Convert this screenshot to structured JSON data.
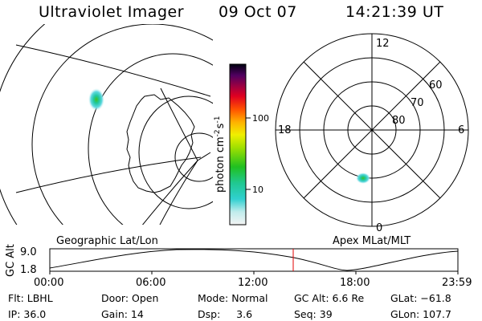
{
  "header": {
    "title": "Ultraviolet Imager",
    "date": "09 Oct 07",
    "time": "14:21:39 UT"
  },
  "colorbar": {
    "ticks": [
      "100",
      "10"
    ],
    "label_main": "photon cm",
    "label_exp1": "-2",
    "label_mid": "s",
    "label_exp2": "-1"
  },
  "polar": {
    "mlt_labels": {
      "top": "12",
      "left": "18",
      "right": "6",
      "bottom": "0"
    },
    "lat_labels": [
      "60",
      "70",
      "80"
    ]
  },
  "timeline": {
    "left_label": "Geographic Lat/Lon",
    "right_label": "Apex MLat/MLT",
    "axis_title": "GC Alt",
    "y_top": "9.0",
    "y_bottom": "1.8",
    "x_ticks": [
      "00:00",
      "06:00",
      "12:00",
      "18:00",
      "23:59"
    ],
    "cursor_color": "#e00000"
  },
  "footer": {
    "flt": "Flt: LBHL",
    "ip": "IP: 36.0",
    "door": "Door: Open",
    "gain": "Gain: 14",
    "mode": "Mode: Normal",
    "dsp": "Dsp:     3.6",
    "gcalt": "GC Alt: 6.6 Re",
    "seq": "Seq: 39",
    "glat": "GLat: −61.8",
    "glon": "GLon: 107.7"
  }
}
